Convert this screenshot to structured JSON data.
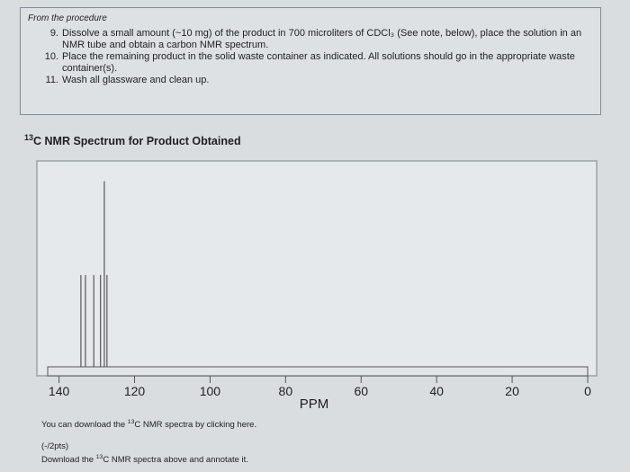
{
  "procedure": {
    "heading": "From the procedure",
    "steps": [
      {
        "num": "9.",
        "lines": [
          "Dissolve a small amount (~10 mg) of the product in 700 microliters of CDCl₃ (See note, below), place the solution in an",
          "NMR tube and obtain a carbon NMR spectrum."
        ]
      },
      {
        "num": "10.",
        "lines": [
          "Place the remaining product in the solid waste container as indicated. All solutions should go in the appropriate waste",
          "container(s)."
        ]
      },
      {
        "num": "11.",
        "lines": [
          "Wash all glassware and clean up."
        ]
      }
    ]
  },
  "spectrum": {
    "heading_sup": "13",
    "heading_text": "C NMR Spectrum for Product Obtained"
  },
  "chart_data": {
    "type": "line",
    "title": "",
    "xlabel": "PPM",
    "ylabel": "",
    "xlim": [
      143,
      0
    ],
    "ylim": [
      0,
      1
    ],
    "xticks": [
      140,
      120,
      100,
      80,
      60,
      40,
      20,
      0
    ],
    "peaks": [
      {
        "ppm": 134.2,
        "height": 0.46
      },
      {
        "ppm": 133.0,
        "height": 0.46
      },
      {
        "ppm": 130.8,
        "height": 0.46
      },
      {
        "ppm": 129.0,
        "height": 0.46
      },
      {
        "ppm": 128.0,
        "height": 0.93
      },
      {
        "ppm": 127.3,
        "height": 0.46
      }
    ],
    "colors": {
      "peak": "#3a3a3a",
      "axis": "#555555",
      "frame": "#9aa3a8"
    }
  },
  "footer": {
    "download_prefix": "You can download the ",
    "download_sup": "13",
    "download_suffix": "C NMR spectra by clicking here.",
    "points": "(-/2pts)",
    "annotate_prefix": "Download the ",
    "annotate_sup": "13",
    "annotate_suffix": "C NMR spectra above and annotate it."
  }
}
